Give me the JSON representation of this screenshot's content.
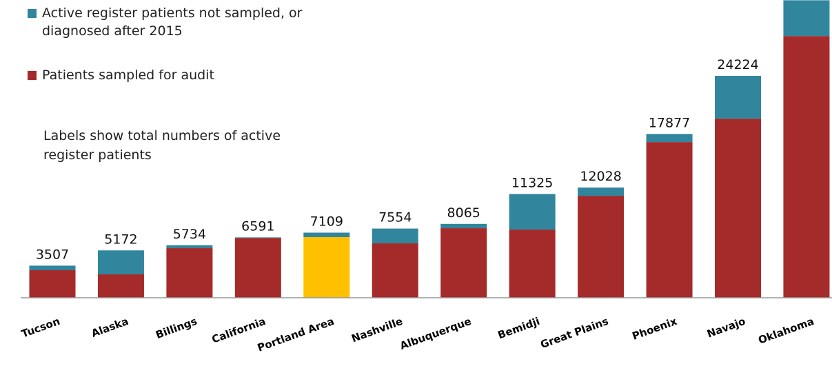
{
  "chart_data": {
    "type": "bar",
    "stacked": true,
    "categories": [
      "Tucson",
      "Alaska",
      "Billings",
      "California",
      "Portland Area",
      "Nashville",
      "Albuquerque",
      "Bemidji",
      "Great Plains",
      "Phoenix",
      "Navajo",
      "Oklahoma"
    ],
    "series": [
      {
        "name": "Active register patients not sampled, or diagnosed after 2015",
        "color": "#31859c",
        "values": [
          499,
          2616,
          320,
          60,
          492,
          1614,
          471,
          3881,
          900,
          885,
          4675,
          3900
        ]
      },
      {
        "name": "Patients sampled for audit",
        "color": "#a52a2a",
        "values": [
          3008,
          2556,
          5414,
          6531,
          6617,
          5940,
          7594,
          7444,
          11128,
          16992,
          19549,
          28571
        ]
      }
    ],
    "totals": [
      3507,
      5172,
      5734,
      6591,
      7109,
      7554,
      8065,
      11325,
      12028,
      17877,
      24224,
      null
    ],
    "highlight": {
      "category": 4,
      "color": "#ffc000"
    },
    "annotation": "Labels show total numbers of active register patients",
    "ylim": [
      0,
      32500
    ]
  }
}
